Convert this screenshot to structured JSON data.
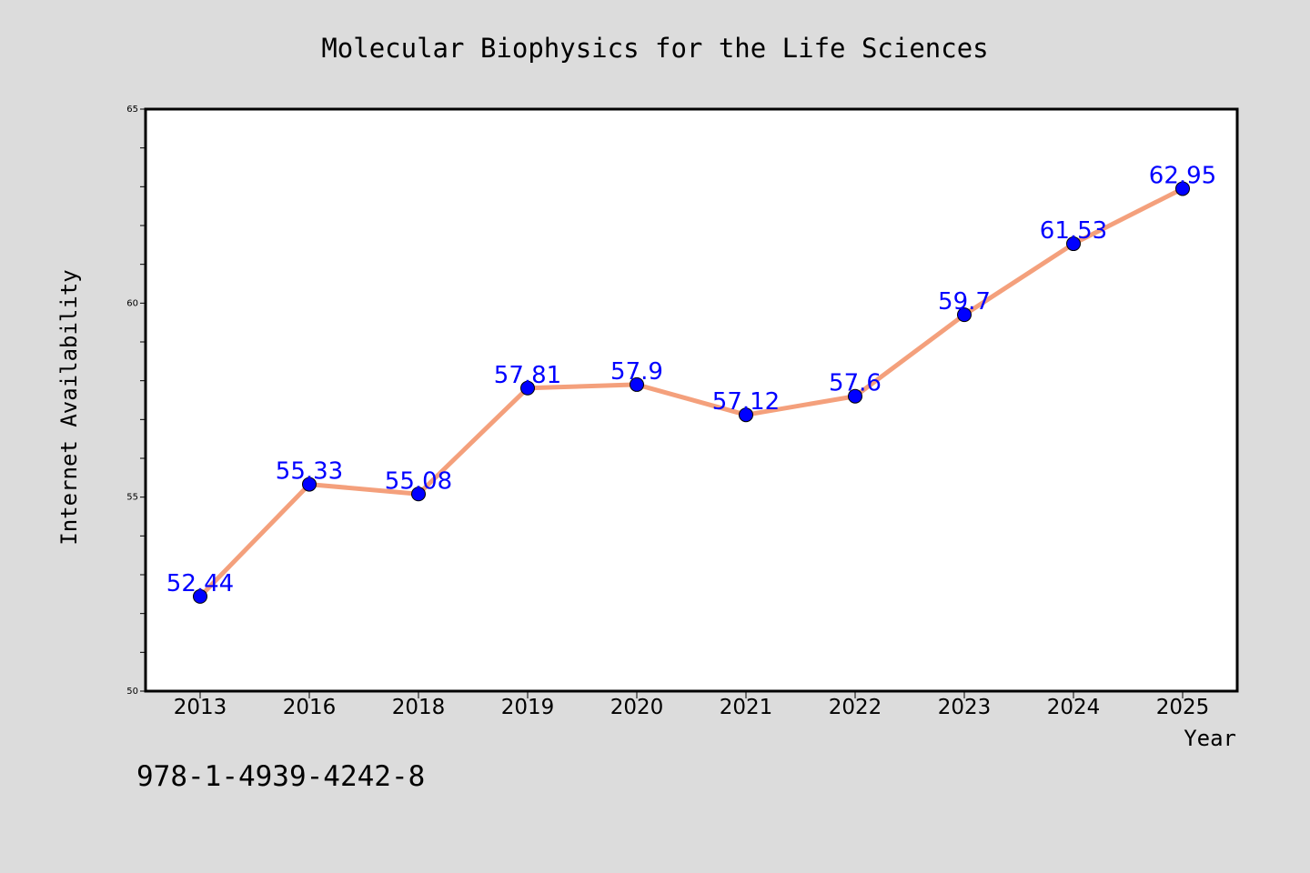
{
  "chart_data": {
    "type": "line",
    "title": "Molecular Biophysics for the Life Sciences",
    "xlabel": "Year",
    "ylabel": "Internet Availability",
    "categories": [
      "2013",
      "2016",
      "2018",
      "2019",
      "2020",
      "2021",
      "2022",
      "2023",
      "2024",
      "2025"
    ],
    "series": [
      {
        "values": [
          52.44,
          55.33,
          55.08,
          57.81,
          57.9,
          57.12,
          57.6,
          59.7,
          61.53,
          62.95
        ],
        "data_labels": [
          "52.44",
          "55.33",
          "55.08",
          "57.81",
          "57.9",
          "57.12",
          "57.6",
          "59.7",
          "61.53",
          "62.95"
        ]
      }
    ],
    "ylim": [
      50,
      65
    ],
    "yticks": [
      "50",
      "55",
      "60",
      "65"
    ],
    "grid": false,
    "line_color": "#f4a07c",
    "marker_color": "#0000ff"
  },
  "footnote": "978-1-4939-4242-8",
  "colors": {
    "background": "#dcdcdc",
    "plot_background": "#ffffff"
  }
}
